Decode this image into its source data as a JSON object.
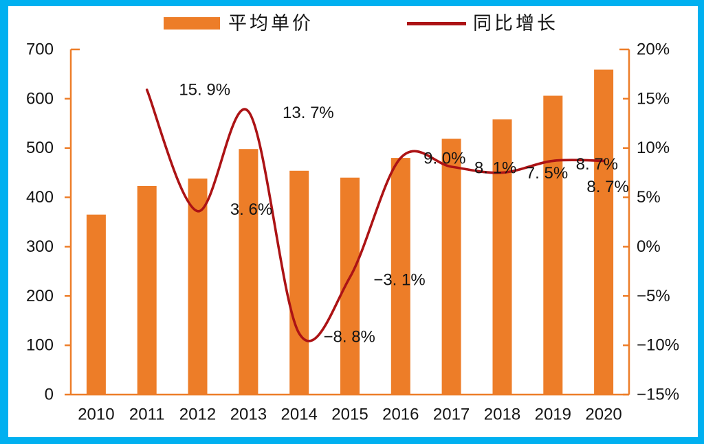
{
  "frame": {
    "border_color": "#00B0F0",
    "background": "#FFFFFF"
  },
  "legend": {
    "position": "top",
    "items": [
      {
        "label": "平均单价",
        "marker": "bar-swatch",
        "color": "#ED7D28"
      },
      {
        "label": "同比增长",
        "marker": "line-swatch",
        "color": "#AC1315"
      }
    ]
  },
  "chart_data": {
    "type": "bar",
    "subtype": "combo-bar-line",
    "title": "",
    "xlabel": "",
    "ylabel": "",
    "grid": false,
    "legend_position": "top",
    "categories": [
      "2010",
      "2011",
      "2012",
      "2013",
      "2014",
      "2015",
      "2016",
      "2017",
      "2018",
      "2019",
      "2020"
    ],
    "series": [
      {
        "name": "平均单价",
        "type": "bar",
        "axis": "left",
        "color": "#ED7D28",
        "values": [
          365,
          423,
          438,
          498,
          454,
          440,
          480,
          519,
          558,
          606,
          659
        ]
      },
      {
        "name": "同比增长",
        "type": "line",
        "axis": "right",
        "color": "#AC1315",
        "values": [
          null,
          15.9,
          3.6,
          13.7,
          -8.8,
          -3.1,
          9.0,
          8.1,
          7.5,
          8.7,
          8.7
        ],
        "point_labels": [
          null,
          "15. 9%",
          "3. 6%",
          "13. 7%",
          "−8. 8%",
          "−3. 1%",
          "9. 0%",
          "8. 1%",
          "7. 5%",
          "8. 7%",
          "8. 7%"
        ],
        "label_offsets": [
          null,
          [
            84,
            0
          ],
          [
            78,
            -2
          ],
          [
            87,
            2
          ],
          [
            73,
            5
          ],
          [
            72,
            4
          ],
          [
            64,
            1
          ],
          [
            64,
            2
          ],
          [
            65,
            1
          ],
          [
            64,
            5
          ],
          [
            6,
            38
          ]
        ]
      }
    ],
    "left_axis": {
      "min": 0,
      "max": 700,
      "step": 100,
      "tick_labels": [
        "700",
        "600",
        "500",
        "400",
        "300",
        "200",
        "100",
        "0"
      ]
    },
    "right_axis": {
      "min": -15,
      "max": 20,
      "step": 5,
      "tick_labels": [
        "20%",
        "15%",
        "10%",
        "5%",
        "0%",
        "−5%",
        "−10%",
        "−15%"
      ]
    },
    "axis_color": "#ED7D28",
    "text_color": "#141414"
  }
}
